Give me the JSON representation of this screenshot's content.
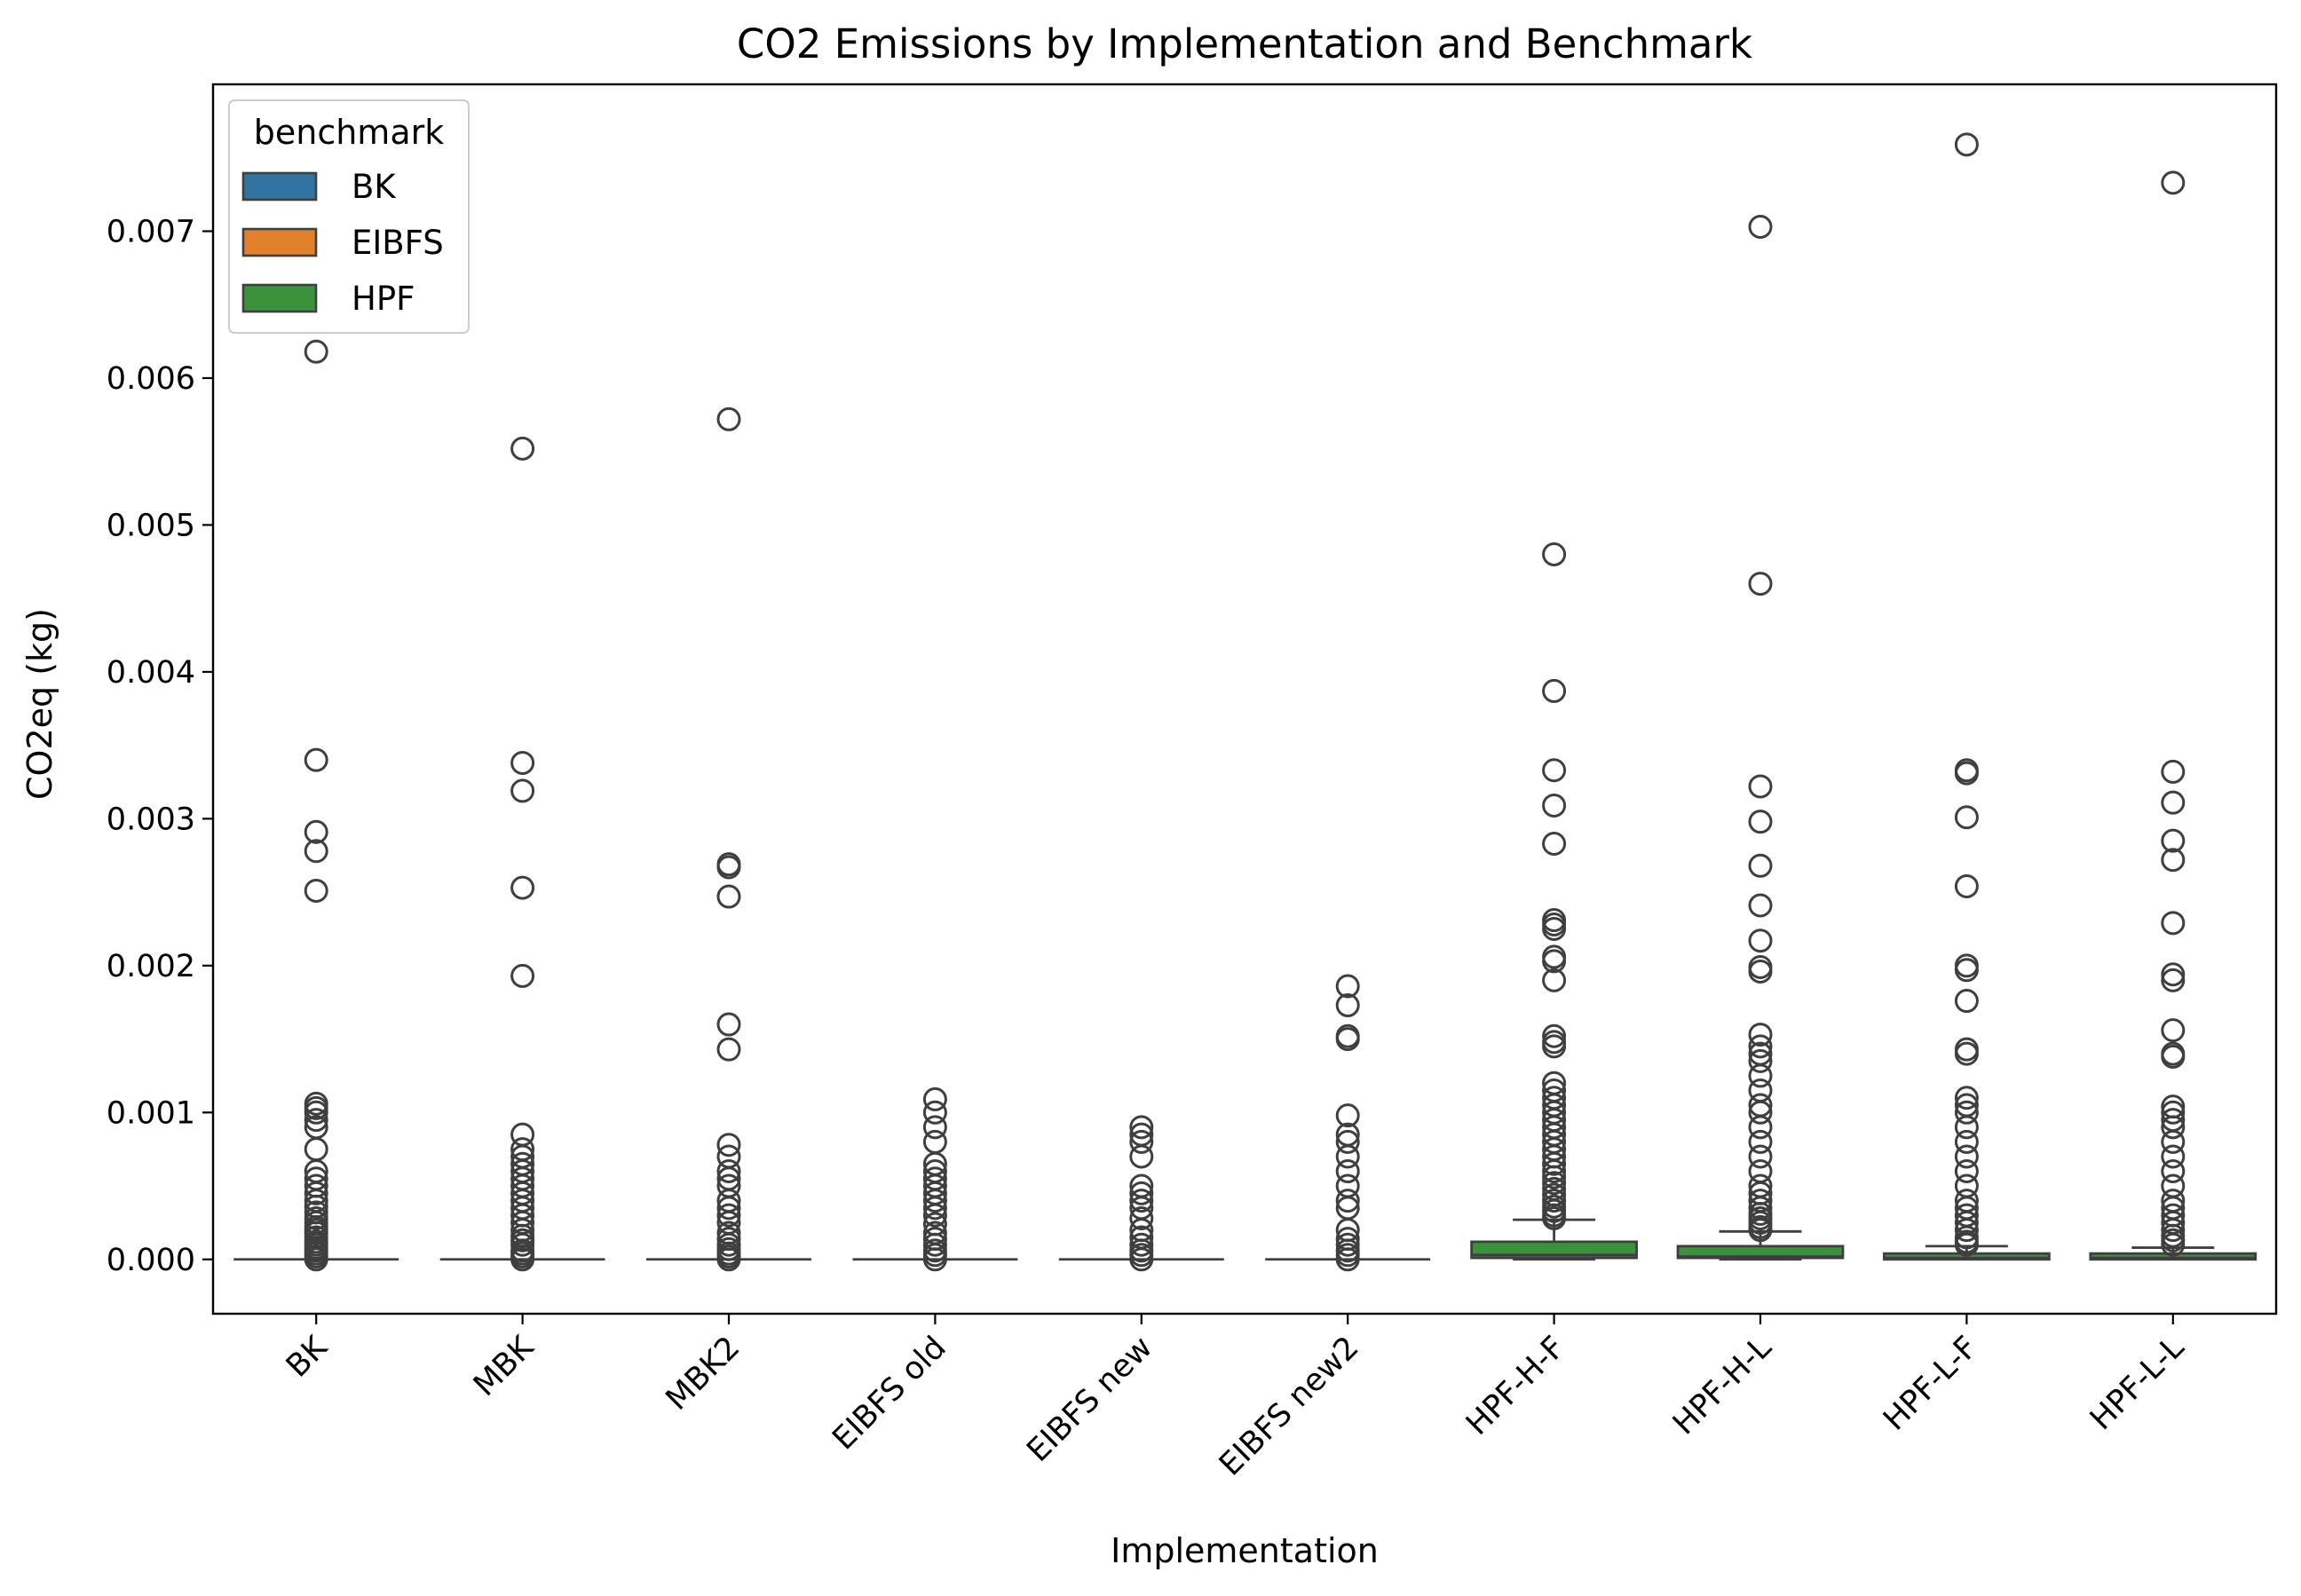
{
  "chart_data": {
    "type": "box",
    "title": "CO2 Emissions by Implementation and Benchmark",
    "xlabel": "Implementation",
    "ylabel": "CO2eq (kg)",
    "ylim": [
      -0.00037,
      0.008
    ],
    "yticks": [
      0.0,
      0.001,
      0.002,
      0.003,
      0.004,
      0.005,
      0.006,
      0.007
    ],
    "ytick_labels": [
      "0.000",
      "0.001",
      "0.002",
      "0.003",
      "0.004",
      "0.005",
      "0.006",
      "0.007"
    ],
    "categories": [
      "BK",
      "MBK",
      "MBK2",
      "EIBFS old",
      "EIBFS new",
      "EIBFS new2",
      "HPF-H-F",
      "HPF-H-L",
      "HPF-L-F",
      "HPF-L-L"
    ],
    "legend": {
      "title": "benchmark",
      "position": "upper-left",
      "entries": [
        {
          "name": "BK",
          "color": "#3274a1"
        },
        {
          "name": "EIBFS",
          "color": "#e1812c"
        },
        {
          "name": "HPF",
          "color": "#3a923a"
        }
      ]
    },
    "boxes": [
      {
        "category": "BK",
        "benchmark": "BK",
        "q1": 0.0,
        "median": 0.0,
        "q3": 0.0,
        "whisker_low": 0.0,
        "whisker_high": 0.0,
        "outliers": [
          0.0,
          2e-05,
          4e-05,
          6e-05,
          8e-05,
          0.0001,
          0.00012,
          0.00015,
          0.00018,
          0.0002,
          0.00022,
          0.00025,
          0.00028,
          0.00032,
          0.00036,
          0.0004,
          0.00045,
          0.0005,
          0.00055,
          0.0006,
          0.00075,
          0.0009,
          0.00095,
          0.001,
          0.00103,
          0.00106,
          0.00251,
          0.00278,
          0.00291,
          0.0034,
          0.00618
        ]
      },
      {
        "category": "MBK",
        "benchmark": "BK",
        "q1": 0.0,
        "median": 0.0,
        "q3": 0.0,
        "whisker_low": 0.0,
        "whisker_high": 0.0,
        "outliers": [
          0.0,
          2e-05,
          4e-05,
          6e-05,
          0.0001,
          0.00013,
          0.00016,
          0.0002,
          0.00025,
          0.0003,
          0.00035,
          0.0004,
          0.00045,
          0.0005,
          0.00055,
          0.0006,
          0.00065,
          0.0007,
          0.00075,
          0.00085,
          0.00193,
          0.00253,
          0.00319,
          0.00338,
          0.00552
        ]
      },
      {
        "category": "MBK2",
        "benchmark": "BK",
        "q1": 0.0,
        "median": 0.0,
        "q3": 0.0,
        "whisker_low": 0.0,
        "whisker_high": 0.0,
        "outliers": [
          0.0,
          2e-05,
          4e-05,
          7e-05,
          0.0001,
          0.00014,
          0.00018,
          0.00025,
          0.0003,
          0.00035,
          0.0004,
          0.0005,
          0.00055,
          0.0006,
          0.0007,
          0.00078,
          0.00143,
          0.0016,
          0.00247,
          0.00267,
          0.00269,
          0.00572
        ]
      },
      {
        "category": "EIBFS old",
        "benchmark": "EIBFS",
        "q1": 0.0,
        "median": 0.0,
        "q3": 0.0,
        "whisker_low": 0.0,
        "whisker_high": 0.0,
        "outliers": [
          0.0,
          3e-05,
          6e-05,
          0.0001,
          0.00014,
          0.00018,
          0.00024,
          0.0003,
          0.00035,
          0.0004,
          0.00045,
          0.0005,
          0.00055,
          0.0006,
          0.00065,
          0.0008,
          0.0009,
          0.001,
          0.00109
        ]
      },
      {
        "category": "EIBFS new",
        "benchmark": "EIBFS",
        "q1": 0.0,
        "median": 0.0,
        "q3": 0.0,
        "whisker_low": 0.0,
        "whisker_high": 0.0,
        "outliers": [
          0.0,
          3e-05,
          6e-05,
          0.0001,
          0.00015,
          0.0002,
          0.00028,
          0.00035,
          0.0004,
          0.00045,
          0.0005,
          0.0007,
          0.0008,
          0.00085,
          0.0009
        ]
      },
      {
        "category": "EIBFS new2",
        "benchmark": "EIBFS",
        "q1": 0.0,
        "median": 0.0,
        "q3": 0.0,
        "whisker_low": 0.0,
        "whisker_high": 0.0,
        "outliers": [
          0.0,
          3e-05,
          6e-05,
          0.0001,
          0.00014,
          0.0002,
          0.00035,
          0.0004,
          0.0005,
          0.0006,
          0.0007,
          0.0008,
          0.00085,
          0.00098,
          0.0015,
          0.00152,
          0.00173,
          0.00186
        ]
      },
      {
        "category": "HPF-H-F",
        "benchmark": "HPF",
        "q1": 1e-05,
        "median": 3e-05,
        "q3": 0.00012,
        "whisker_low": 0.0,
        "whisker_high": 0.00027,
        "outliers": [
          0.00028,
          0.0003,
          0.00033,
          0.00036,
          0.0004,
          0.00044,
          0.00048,
          0.00052,
          0.00056,
          0.0006,
          0.00065,
          0.0007,
          0.00075,
          0.0008,
          0.00085,
          0.0009,
          0.00095,
          0.001,
          0.00105,
          0.0011,
          0.00115,
          0.0012,
          0.00145,
          0.00148,
          0.00152,
          0.0019,
          0.00203,
          0.00206,
          0.00225,
          0.00228,
          0.00231,
          0.00283,
          0.00309,
          0.00333,
          0.00387,
          0.0048
        ]
      },
      {
        "category": "HPF-H-L",
        "benchmark": "HPF",
        "q1": 1e-05,
        "median": 2e-05,
        "q3": 9e-05,
        "whisker_low": 0.0,
        "whisker_high": 0.00019,
        "outliers": [
          0.0002,
          0.00022,
          0.00025,
          0.00028,
          0.00031,
          0.00035,
          0.0004,
          0.00045,
          0.0005,
          0.0006,
          0.0007,
          0.0008,
          0.0009,
          0.001,
          0.00105,
          0.00115,
          0.00125,
          0.00135,
          0.0014,
          0.00145,
          0.00153,
          0.00196,
          0.00199,
          0.00217,
          0.00241,
          0.00268,
          0.00298,
          0.00322,
          0.0046,
          0.00703
        ]
      },
      {
        "category": "HPF-L-F",
        "benchmark": "HPF",
        "q1": 0.0,
        "median": 1e-05,
        "q3": 4e-05,
        "whisker_low": 0.0,
        "whisker_high": 9e-05,
        "outliers": [
          0.0001,
          0.00012,
          0.00015,
          0.0002,
          0.00025,
          0.0003,
          0.00035,
          0.0004,
          0.0005,
          0.0006,
          0.0007,
          0.0008,
          0.0009,
          0.001,
          0.00105,
          0.0011,
          0.0014,
          0.00143,
          0.00176,
          0.00197,
          0.002,
          0.00254,
          0.00301,
          0.00331,
          0.00333,
          0.00759
        ]
      },
      {
        "category": "HPF-L-L",
        "benchmark": "HPF",
        "q1": 0.0,
        "median": 1e-05,
        "q3": 4e-05,
        "whisker_low": 0.0,
        "whisker_high": 8e-05,
        "outliers": [
          0.0001,
          0.00013,
          0.00016,
          0.0002,
          0.00025,
          0.0003,
          0.00035,
          0.0004,
          0.0005,
          0.0006,
          0.0007,
          0.0008,
          0.0009,
          0.00095,
          0.001,
          0.00104,
          0.00138,
          0.0014,
          0.00156,
          0.0019,
          0.00194,
          0.00229,
          0.00272,
          0.00285,
          0.00311,
          0.00332,
          0.00733
        ]
      }
    ]
  }
}
